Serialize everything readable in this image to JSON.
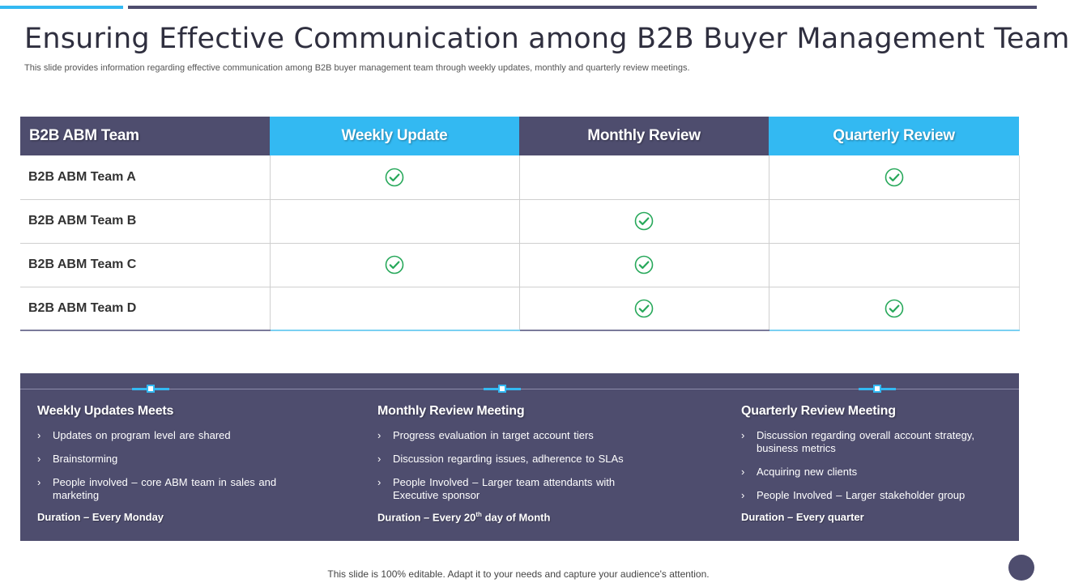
{
  "slide": {
    "title": "Ensuring Effective Communication among B2B Buyer Management Team",
    "subtitle": "This slide provides information regarding effective communication among B2B buyer management team through weekly updates, monthly and quarterly review meetings.",
    "footer": "This slide is 100% editable. Adapt it to your needs and capture your audience's attention."
  },
  "colors": {
    "accent_blue": "#33b9f2",
    "dark_purple": "#4e4d6e",
    "check_green": "#27a85a"
  },
  "table": {
    "headers": [
      "B2B ABM Team",
      "Weekly Update",
      "Monthly Review",
      "Quarterly Review"
    ],
    "rows": [
      {
        "team": "B2B ABM Team A",
        "weekly": true,
        "monthly": false,
        "quarterly": true
      },
      {
        "team": "B2B ABM Team B",
        "weekly": false,
        "monthly": true,
        "quarterly": false
      },
      {
        "team": "B2B ABM Team C",
        "weekly": true,
        "monthly": true,
        "quarterly": false
      },
      {
        "team": "B2B ABM Team D",
        "weekly": false,
        "monthly": true,
        "quarterly": true
      }
    ],
    "check_icon": "check-circle-icon"
  },
  "meetings": [
    {
      "title": "Weekly Updates Meets",
      "bullets": [
        "Updates on program level are shared",
        "Brainstorming",
        "People involved  – core ABM team in sales and marketing"
      ],
      "duration": "Duration – Every Monday"
    },
    {
      "title": "Monthly Review Meeting",
      "bullets": [
        "Progress evaluation  in target account tiers",
        "Discussion regarding  issues, adherence to SLAs",
        "People Involved  – Larger team attendants with Executive sponsor"
      ],
      "duration_prefix": "Duration – Every 20",
      "duration_sup": "th",
      "duration_suffix": " day of Month"
    },
    {
      "title": "Quarterly Review Meeting",
      "bullets": [
        "Discussion regarding  overall account strategy, business  metrics",
        "Acquiring new clients",
        "People Involved  – Larger stakeholder group"
      ],
      "duration": "Duration – Every quarter"
    }
  ]
}
